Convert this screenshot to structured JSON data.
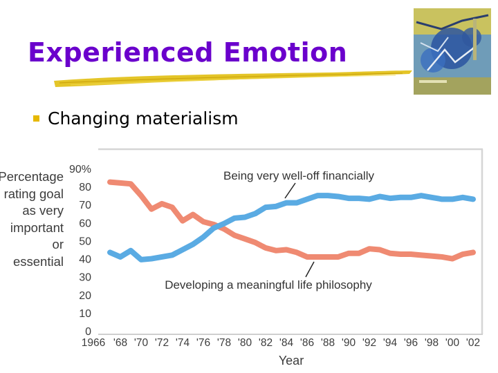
{
  "slide": {
    "title": "Experienced Emotion",
    "bullet": "Changing materialism"
  },
  "y_axis_label_lines": [
    "Percentage",
    "rating goal",
    "as very",
    "important",
    "or",
    "essential"
  ],
  "chart_data": {
    "type": "line",
    "title": "",
    "xlabel": "Year",
    "ylabel": "Percentage rating goal as very important or essential",
    "ylim": [
      0,
      90
    ],
    "x_ticks": [
      1966,
      1968,
      1970,
      1972,
      1974,
      1976,
      1978,
      1980,
      1982,
      1984,
      1986,
      1988,
      1990,
      1992,
      1994,
      1996,
      1998,
      2000,
      2002
    ],
    "x_tick_labels": [
      "1966",
      "'68",
      "'70",
      "'72",
      "'74",
      "'76",
      "'78",
      "'80",
      "'82",
      "'84",
      "'86",
      "'88",
      "'90",
      "'92",
      "'94",
      "'96",
      "'98",
      "'00",
      "'02"
    ],
    "y_ticks": [
      0,
      10,
      20,
      30,
      40,
      50,
      60,
      70,
      80,
      90
    ],
    "y_tick_labels": [
      "0",
      "10",
      "20",
      "30",
      "40",
      "50",
      "60",
      "70",
      "80",
      "90%"
    ],
    "x": [
      1967,
      1968,
      1969,
      1970,
      1971,
      1972,
      1973,
      1974,
      1975,
      1976,
      1977,
      1978,
      1979,
      1980,
      1981,
      1982,
      1983,
      1984,
      1985,
      1986,
      1987,
      1988,
      1989,
      1990,
      1991,
      1992,
      1993,
      1994,
      1995,
      1996,
      1997,
      1998,
      1999,
      2000,
      2001,
      2002
    ],
    "series": [
      {
        "name": "Being very well-off financially",
        "color": "#5aabe3",
        "values": [
          43.5,
          41,
          44.5,
          39.5,
          40,
          41,
          42,
          45,
          48,
          52,
          57,
          59.5,
          62.5,
          63,
          65,
          68.5,
          69,
          71,
          71,
          73,
          75,
          75,
          74.5,
          73.5,
          73.5,
          73,
          74.5,
          73.5,
          74,
          74,
          75,
          74,
          73,
          73,
          74,
          73
        ]
      },
      {
        "name": "Developing a meaningful life philosophy",
        "color": "#ef8a72",
        "values": [
          82.5,
          82,
          81.5,
          75,
          67.5,
          70.5,
          68.5,
          61,
          64.5,
          60.5,
          59,
          56.5,
          53,
          51,
          49,
          46,
          44.5,
          45,
          43.5,
          41,
          41,
          41,
          41,
          43,
          43,
          45.5,
          45,
          43,
          42.5,
          42.5,
          42,
          41.5,
          41,
          40,
          42.5,
          43.5
        ]
      }
    ],
    "annotations": [
      {
        "text": "Being very well-off financially",
        "series": 0
      },
      {
        "text": "Developing a meaningful life philosophy",
        "series": 1
      }
    ]
  }
}
